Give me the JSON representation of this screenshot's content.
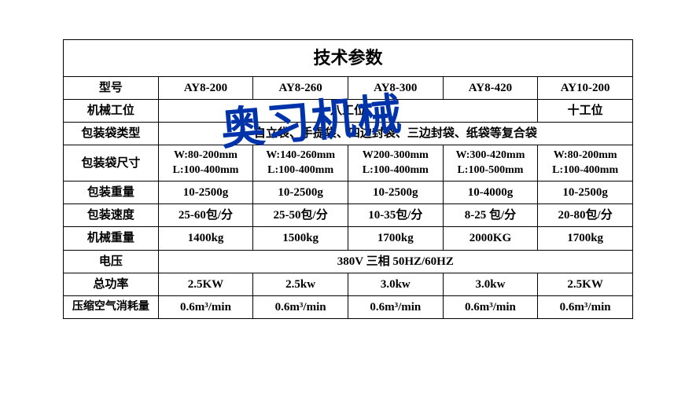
{
  "title": "技术参数",
  "watermark": "奥习机械",
  "headers": {
    "model": "型号",
    "station": "机械工位",
    "bag_type": "包装袋类型",
    "bag_size": "包装袋尺寸",
    "pack_weight": "包装重量",
    "pack_speed": "包装速度",
    "machine_weight": "机械重量",
    "voltage": "电压",
    "power": "总功率",
    "air": "压缩空气消耗量"
  },
  "models": {
    "c1": "AY8-200",
    "c2": "AY8-260",
    "c3": "AY8-300",
    "c4": "AY8-420",
    "c5": "AY10-200"
  },
  "station": {
    "span4": "八工位",
    "c5": "十工位"
  },
  "bag_type_span": "自立袋、手提袋、四边封袋、三边封袋、纸袋等复合袋",
  "bag_size": {
    "c1w": "W:80-200mm",
    "c1l": "L:100-400mm",
    "c2w": "W:140-260mm",
    "c2l": "L:100-400mm",
    "c3w": "W200-300mm",
    "c3l": "L:100-400mm",
    "c4w": "W:300-420mm",
    "c4l": "L:100-500mm",
    "c5w": "W:80-200mm",
    "c5l": "L:100-400mm"
  },
  "pack_weight": {
    "c1": "10-2500g",
    "c2": "10-2500g",
    "c3": "10-2500g",
    "c4": "10-4000g",
    "c5": "10-2500g"
  },
  "pack_speed": {
    "c1": "25-60包/分",
    "c2": "25-50包/分",
    "c3": "10-35包/分",
    "c4": "8-25 包/分",
    "c5": "20-80包/分"
  },
  "machine_weight": {
    "c1": "1400kg",
    "c2": "1500kg",
    "c3": "1700kg",
    "c4": "2000KG",
    "c5": "1700kg"
  },
  "voltage_span": "380V 三相 50HZ/60HZ",
  "power": {
    "c1": "2.5KW",
    "c2": "2.5kw",
    "c3": "3.0kw",
    "c4": "3.0kw",
    "c5": "2.5KW"
  },
  "air_val": "0.6m³/min",
  "styling": {
    "border_color": "#000000",
    "text_color": "#000000",
    "background": "#ffffff",
    "watermark_color": "#0033aa",
    "title_fontsize": 22,
    "cell_fontsize": 15,
    "font_family": "SimSun"
  }
}
